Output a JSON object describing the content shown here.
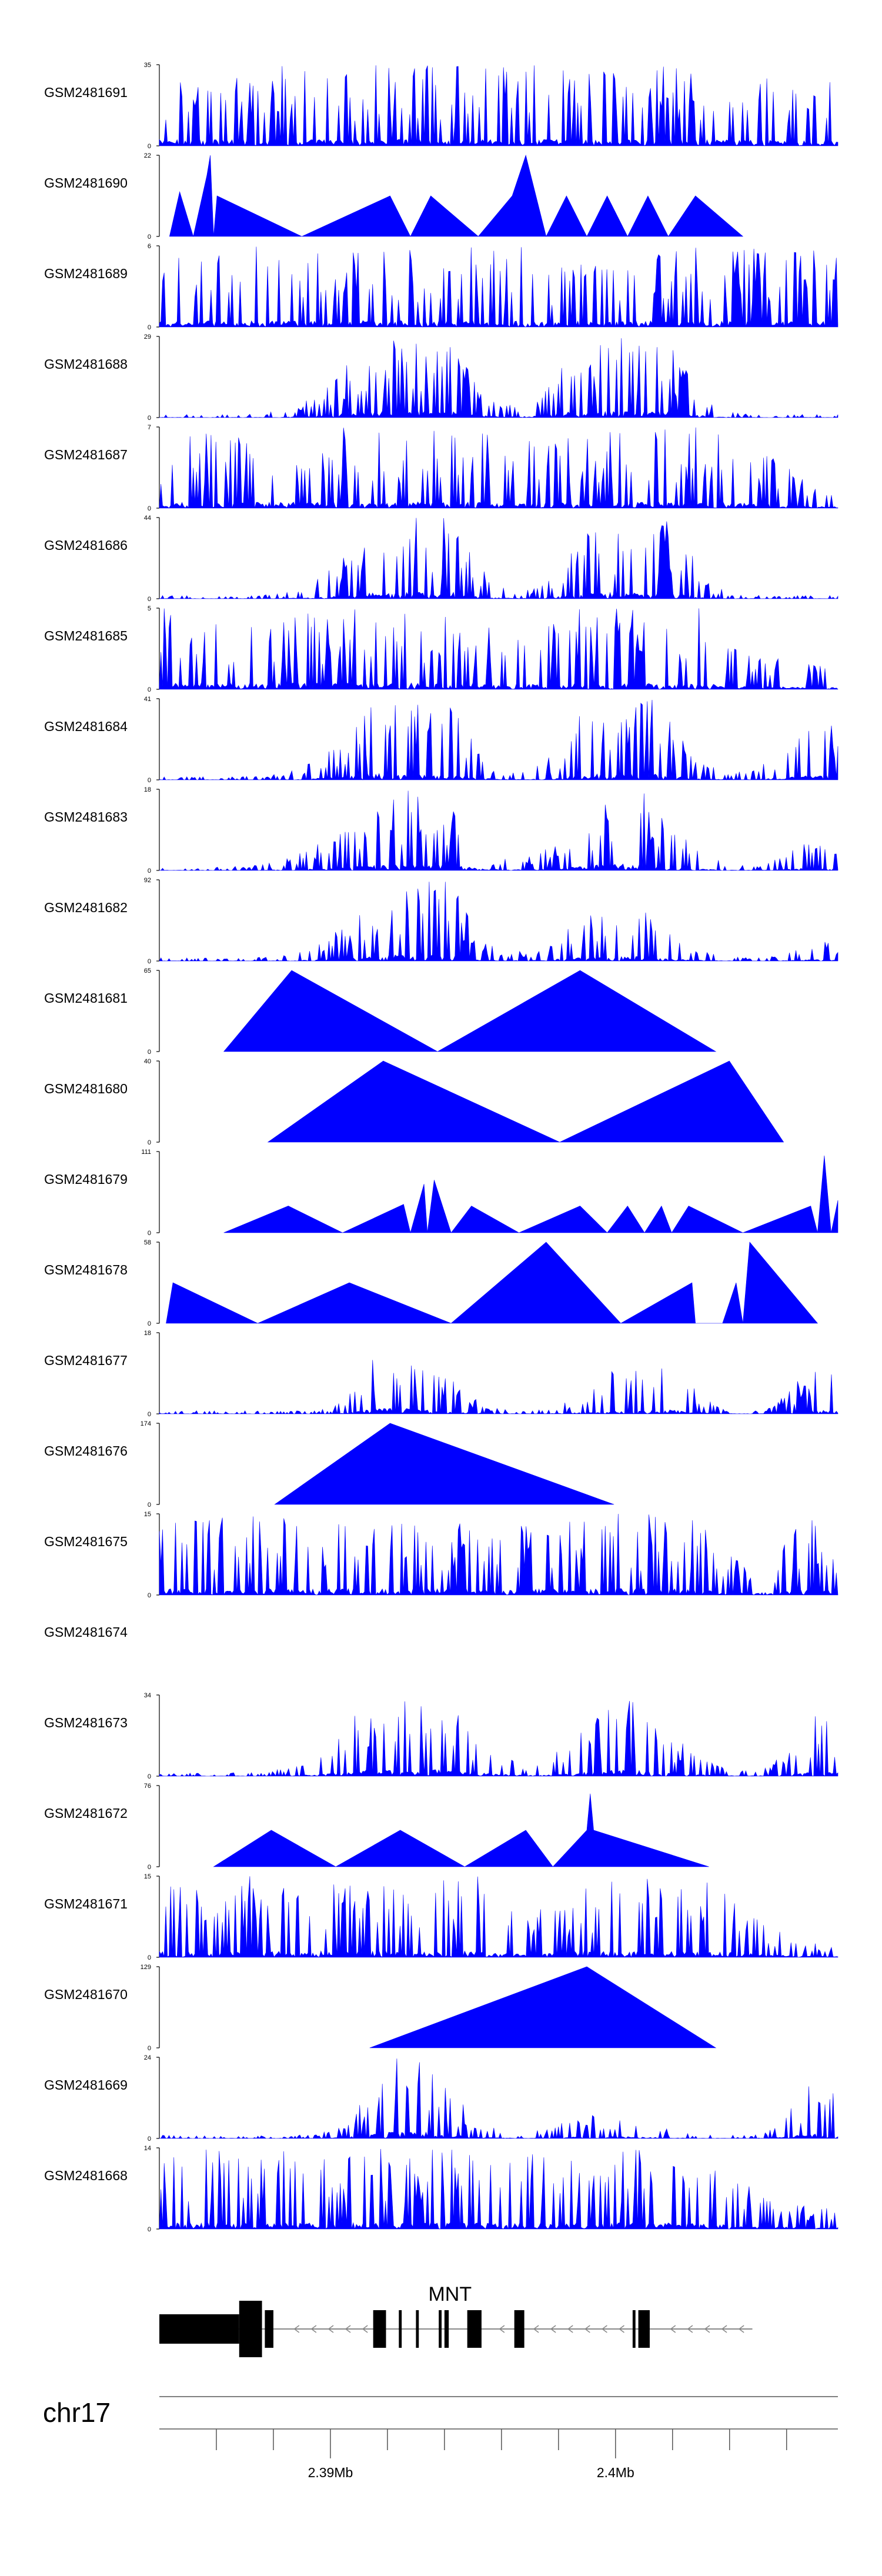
{
  "chart_data": {
    "type": "area",
    "chromosome": "chr17",
    "gene": {
      "name": "MNT",
      "strand": "-",
      "start": 2384000,
      "end": 2404800,
      "exons": [
        [
          2384000,
          2386800
        ],
        [
          2386800,
          2387600
        ],
        [
          2387700,
          2388000
        ],
        [
          2391500,
          2391950
        ],
        [
          2392400,
          2392500
        ],
        [
          2393000,
          2393100
        ],
        [
          2393800,
          2393900
        ],
        [
          2394000,
          2394150
        ],
        [
          2394800,
          2395300
        ],
        [
          2396450,
          2396800
        ],
        [
          2400600,
          2400700
        ],
        [
          2400800,
          2401200
        ]
      ]
    },
    "axis": {
      "xlim": [
        2384000,
        2407800
      ],
      "tick_step": 2000,
      "tick_labels": [
        {
          "pos": 2390000,
          "label": "2.39Mb"
        },
        {
          "pos": 2400000,
          "label": "2.4Mb"
        }
      ]
    },
    "tracks": [
      {
        "label": "GSM2481691",
        "ymax": "35",
        "ymin": "0",
        "style": "dense",
        "peaks": [
          [
            0.3,
            0.62,
            0.1
          ],
          [
            0.35,
            0.88,
            0.05
          ],
          [
            0.4,
            0.72,
            0.25
          ],
          [
            0.47,
            0.5,
            0.2
          ],
          [
            0.99,
            0.5,
            0.3
          ],
          [
            0.1,
            0.98,
            0.85
          ]
        ]
      },
      {
        "label": "GSM2481690",
        "ymax": "22",
        "ymin": "0",
        "style": "sparse",
        "points": [
          [
            0.015,
            0
          ],
          [
            0.03,
            0.55
          ],
          [
            0.05,
            0
          ],
          [
            0.07,
            0.75
          ],
          [
            0.075,
            1.0
          ],
          [
            0.08,
            0
          ],
          [
            0.085,
            0.5
          ],
          [
            0.21,
            0
          ],
          [
            0.34,
            0.5
          ],
          [
            0.37,
            0
          ],
          [
            0.4,
            0.5
          ],
          [
            0.47,
            0
          ],
          [
            0.52,
            0.5
          ],
          [
            0.54,
            1.0
          ],
          [
            0.57,
            0
          ],
          [
            0.6,
            0.5
          ],
          [
            0.63,
            0
          ],
          [
            0.66,
            0.5
          ],
          [
            0.69,
            0
          ],
          [
            0.72,
            0.5
          ],
          [
            0.75,
            0
          ],
          [
            0.79,
            0.5
          ],
          [
            0.86,
            0
          ]
        ]
      },
      {
        "label": "GSM2481689",
        "ymax": "6",
        "ymin": "0",
        "style": "dense",
        "peaks": [
          [
            0.25,
            0.6,
            0.1
          ],
          [
            0.45,
            0.75,
            0.08
          ],
          [
            0.65,
            1.0,
            0.05
          ],
          [
            0.9,
            0.8,
            0.2
          ],
          [
            0.1,
            0.98,
            0.7
          ]
        ]
      },
      {
        "label": "GSM2481688",
        "ymax": "29",
        "ymin": "0",
        "style": "dense",
        "peaks": [
          [
            0.31,
            0.35,
            0.08
          ],
          [
            0.35,
            0.55,
            0.1
          ],
          [
            0.39,
            0.95,
            0.05
          ],
          [
            0.4,
            0.5,
            0.08
          ],
          [
            0.62,
            0.5,
            0.06
          ],
          [
            0.66,
            0.45,
            0.07
          ],
          [
            0.7,
            0.7,
            0.08
          ],
          [
            0.73,
            0.5,
            0.06
          ]
        ]
      },
      {
        "label": "GSM2481687",
        "ymax": "7",
        "ymin": "0",
        "style": "dense",
        "peaks": [
          [
            0.35,
            0.8,
            0.1
          ],
          [
            0.67,
            1.0,
            0.08
          ],
          [
            0.83,
            0.6,
            0.1
          ],
          [
            0.2,
            0.95,
            0.6
          ]
        ]
      },
      {
        "label": "GSM2481686",
        "ymax": "44",
        "ymin": "0",
        "style": "dense",
        "peaks": [
          [
            0.32,
            0.35,
            0.08
          ],
          [
            0.36,
            0.55,
            0.1
          ],
          [
            0.4,
            0.95,
            0.06
          ],
          [
            0.64,
            0.45,
            0.06
          ],
          [
            0.68,
            0.4,
            0.08
          ],
          [
            0.72,
            0.65,
            0.06
          ],
          [
            0.74,
            0.4,
            0.06
          ]
        ]
      },
      {
        "label": "GSM2481685",
        "ymax": "5",
        "ymin": "0",
        "style": "dense",
        "peaks": [
          [
            0.22,
            0.5,
            0.1
          ],
          [
            0.3,
            0.6,
            0.12
          ],
          [
            0.7,
            0.9,
            0.08
          ],
          [
            0.74,
            0.85,
            0.06
          ],
          [
            0.12,
            0.99,
            0.8
          ]
        ]
      },
      {
        "label": "GSM2481684",
        "ymax": "41",
        "ymin": "0",
        "style": "dense",
        "peaks": [
          [
            0.32,
            0.38,
            0.08
          ],
          [
            0.36,
            0.6,
            0.1
          ],
          [
            0.4,
            0.95,
            0.05
          ],
          [
            0.64,
            0.5,
            0.06
          ],
          [
            0.68,
            0.45,
            0.08
          ],
          [
            0.72,
            0.6,
            0.07
          ],
          [
            0.96,
            0.45,
            0.07
          ],
          [
            0.99,
            0.3,
            0.05
          ]
        ]
      },
      {
        "label": "GSM2481683",
        "ymax": "18",
        "ymin": "0",
        "style": "dense",
        "peaks": [
          [
            0.3,
            0.3,
            0.1
          ],
          [
            0.36,
            0.5,
            0.1
          ],
          [
            0.4,
            0.9,
            0.05
          ],
          [
            0.66,
            0.45,
            0.1
          ],
          [
            0.7,
            0.6,
            0.08
          ],
          [
            0.96,
            0.3,
            0.05
          ]
        ]
      },
      {
        "label": "GSM2481682",
        "ymax": "92",
        "ymin": "0",
        "style": "dense",
        "peaks": [
          [
            0.32,
            0.3,
            0.08
          ],
          [
            0.37,
            0.5,
            0.1
          ],
          [
            0.4,
            0.95,
            0.05
          ],
          [
            0.65,
            0.4,
            0.08
          ],
          [
            0.7,
            0.4,
            0.08
          ],
          [
            0.98,
            0.2,
            0.05
          ]
        ]
      },
      {
        "label": "GSM2481681",
        "ymax": "65",
        "ymin": "0",
        "style": "sparse",
        "points": [
          [
            0.095,
            0
          ],
          [
            0.195,
            1.0
          ],
          [
            0.41,
            0
          ],
          [
            0.62,
            1.0
          ],
          [
            0.82,
            0
          ]
        ]
      },
      {
        "label": "GSM2481680",
        "ymax": "40",
        "ymin": "0",
        "style": "sparse",
        "points": [
          [
            0.16,
            0
          ],
          [
            0.33,
            1.0
          ],
          [
            0.59,
            0
          ],
          [
            0.84,
            1.0
          ],
          [
            0.92,
            0
          ]
        ]
      },
      {
        "label": "GSM2481679",
        "ymax": "111",
        "ymin": "0",
        "style": "sparse",
        "points": [
          [
            0.095,
            0
          ],
          [
            0.19,
            0.33
          ],
          [
            0.27,
            0
          ],
          [
            0.36,
            0.35
          ],
          [
            0.37,
            0
          ],
          [
            0.39,
            0.6
          ],
          [
            0.395,
            0
          ],
          [
            0.405,
            0.65
          ],
          [
            0.43,
            0
          ],
          [
            0.46,
            0.33
          ],
          [
            0.53,
            0
          ],
          [
            0.62,
            0.33
          ],
          [
            0.66,
            0
          ],
          [
            0.69,
            0.33
          ],
          [
            0.715,
            0
          ],
          [
            0.74,
            0.33
          ],
          [
            0.755,
            0
          ],
          [
            0.78,
            0.33
          ],
          [
            0.86,
            0
          ],
          [
            0.96,
            0.33
          ],
          [
            0.97,
            0
          ],
          [
            0.98,
            0.95
          ],
          [
            0.99,
            0
          ],
          [
            1.0,
            0.4
          ]
        ]
      },
      {
        "label": "GSM2481678",
        "ymax": "58",
        "ymin": "0",
        "style": "sparse",
        "points": [
          [
            0.01,
            0
          ],
          [
            0.02,
            0.5
          ],
          [
            0.145,
            0
          ],
          [
            0.28,
            0.5
          ],
          [
            0.43,
            0
          ],
          [
            0.57,
            1.0
          ],
          [
            0.68,
            0
          ],
          [
            0.785,
            0.5
          ],
          [
            0.79,
            0
          ],
          [
            0.83,
            0
          ],
          [
            0.85,
            0.5
          ],
          [
            0.86,
            0
          ],
          [
            0.87,
            1.0
          ],
          [
            0.97,
            0
          ]
        ]
      },
      {
        "label": "GSM2481677",
        "ymax": "18",
        "ymin": "0",
        "style": "dense",
        "peaks": [
          [
            0.34,
            0.98,
            0.05
          ],
          [
            0.41,
            0.4,
            0.06
          ],
          [
            0.67,
            0.45,
            0.06
          ],
          [
            0.75,
            0.55,
            0.05
          ],
          [
            0.97,
            0.55,
            0.05
          ]
        ]
      },
      {
        "label": "GSM2481676",
        "ymax": "174",
        "ymin": "0",
        "style": "sparse",
        "points": [
          [
            0.17,
            0
          ],
          [
            0.34,
            1.0
          ],
          [
            0.67,
            0
          ]
        ]
      },
      {
        "label": "GSM2481675",
        "ymax": "15",
        "ymin": "0",
        "style": "dense",
        "peaks": [
          [
            0.35,
            0.9,
            0.08
          ],
          [
            0.65,
            0.8,
            0.1
          ],
          [
            0.74,
            0.7,
            0.1
          ],
          [
            0.96,
            0.8,
            0.05
          ],
          [
            0.15,
            0.98,
            0.55
          ]
        ]
      },
      {
        "label": "GSM2481674",
        "ymax": "",
        "ymin": "",
        "style": "empty"
      },
      {
        "label": "GSM2481673",
        "ymax": "34",
        "ymin": "0",
        "style": "dense",
        "peaks": [
          [
            0.35,
            0.9,
            0.1
          ],
          [
            0.4,
            0.5,
            0.1
          ],
          [
            0.66,
            0.6,
            0.08
          ],
          [
            0.72,
            0.5,
            0.08
          ],
          [
            0.97,
            0.75,
            0.05
          ]
        ]
      },
      {
        "label": "GSM2481672",
        "ymax": "76",
        "ymin": "0",
        "style": "sparse",
        "points": [
          [
            0.08,
            0
          ],
          [
            0.165,
            0.45
          ],
          [
            0.26,
            0
          ],
          [
            0.355,
            0.45
          ],
          [
            0.45,
            0
          ],
          [
            0.54,
            0.45
          ],
          [
            0.58,
            0
          ],
          [
            0.63,
            0.45
          ],
          [
            0.635,
            0.9
          ],
          [
            0.64,
            0.45
          ],
          [
            0.81,
            0
          ]
        ]
      },
      {
        "label": "GSM2481671",
        "ymax": "15",
        "ymin": "0",
        "style": "dense",
        "peaks": [
          [
            0.34,
            0.95,
            0.1
          ],
          [
            0.4,
            0.6,
            0.08
          ],
          [
            0.66,
            0.85,
            0.06
          ],
          [
            0.8,
            0.7,
            0.1
          ],
          [
            0.12,
            0.98,
            0.55
          ]
        ]
      },
      {
        "label": "GSM2481670",
        "ymax": "129",
        "ymin": "0",
        "style": "sparse",
        "points": [
          [
            0.31,
            0
          ],
          [
            0.63,
            1.0
          ],
          [
            0.82,
            0
          ]
        ]
      },
      {
        "label": "GSM2481669",
        "ymax": "24",
        "ymin": "0",
        "style": "dense",
        "peaks": [
          [
            0.35,
            0.9,
            0.06
          ],
          [
            0.4,
            0.5,
            0.07
          ],
          [
            0.66,
            0.3,
            0.08
          ],
          [
            0.97,
            0.65,
            0.05
          ]
        ]
      },
      {
        "label": "GSM2481668",
        "ymax": "14",
        "ymin": "0",
        "style": "dense",
        "peaks": [
          [
            0.3,
            0.7,
            0.12
          ],
          [
            0.37,
            1.0,
            0.05
          ],
          [
            0.7,
            0.7,
            0.15
          ],
          [
            0.1,
            0.98,
            0.7
          ]
        ]
      }
    ]
  }
}
